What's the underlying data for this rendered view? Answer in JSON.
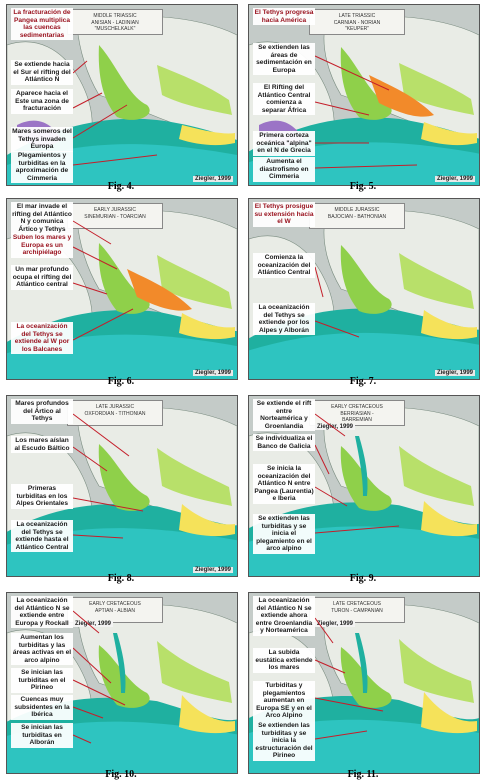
{
  "figures": [
    {
      "caption": "Fig. 4.",
      "legend": [
        "MIDDLE TRIASSIC",
        "ANISIAN - LADINIAN",
        "\"MUSCHELKALK\""
      ],
      "credit": "Ziegler, 1999",
      "annotations": [
        {
          "text": "La fracturación de Pangea multiplica las cuencas sedimentarias",
          "red": true
        },
        {
          "text": "Se extiende hacia el Sur el rifting del Atlántico N",
          "red": false
        },
        {
          "text": "Aparece hacia el Este una zona de fracturación",
          "red": false
        },
        {
          "text": "Mares someros del Tethys invaden Europa",
          "red": false
        },
        {
          "text": "Plegamientos y turbiditas en la aproximación de Cimmeria",
          "red": false
        }
      ]
    },
    {
      "caption": "Fig. 5.",
      "legend": [
        "LATE TRIASSIC",
        "CARNIAN - NORIAN",
        "\"KEUPER\""
      ],
      "credit": "Ziegler, 1999",
      "annotations": [
        {
          "text": "El Tethys progresa hacia América",
          "red": true
        },
        {
          "text": "Se extienden las áreas de sedimentación en Europa",
          "red": false
        },
        {
          "text": "El Rifting del Atlántico Central comienza a separar África",
          "red": false
        },
        {
          "text": "Primera corteza oceánica \"alpina\" en el N de Grecia",
          "red": false
        },
        {
          "text": "Aumenta el diastrofismo en Cimmeria",
          "red": false
        }
      ]
    },
    {
      "caption": "Fig. 6.",
      "legend": [
        "EARLY JURASSIC",
        "SINEMURIAN - TOARCIAN",
        ""
      ],
      "credit": "Ziegler, 1999",
      "annotations": [
        {
          "text": "El mar invade el rifting del Atlántico N y comunica Ártico y Tethys",
          "red": false
        },
        {
          "text": "Suben los mares y Europa es un archipiélago",
          "red": true
        },
        {
          "text": "Un mar profundo ocupa el rifting del Atlántico central",
          "red": false
        },
        {
          "text": "La oceanización del Tethys se extiende al W por los Balcanes",
          "red": true
        }
      ]
    },
    {
      "caption": "Fig. 7.",
      "legend": [
        "MIDDLE JURASSIC",
        "BAJOCIAN - BATHONIAN",
        ""
      ],
      "credit": "Ziegler, 1999",
      "annotations": [
        {
          "text": "El Tethys prosigue su extensión hacia el W",
          "red": true
        },
        {
          "text": "Comienza la oceanización del Atlántico Central",
          "red": false
        },
        {
          "text": "La oceanización del Tethys se extiende por los Alpes y Alborán",
          "red": false
        }
      ]
    },
    {
      "caption": "Fig. 8.",
      "legend": [
        "LATE JURASSIC",
        "OXFORDIAN - TITHONIAN",
        ""
      ],
      "credit": "Ziegler, 1999",
      "annotations": [
        {
          "text": "Mares profundos del Ártico al Tethys",
          "red": false
        },
        {
          "text": "Los mares aíslan al Escudo Báltico",
          "red": false
        },
        {
          "text": "Primeras turbiditas en los Alpes Orientales",
          "red": false
        },
        {
          "text": "La oceanización del Tethys se extiende hasta el Atlántico Central",
          "red": false
        }
      ]
    },
    {
      "caption": "Fig. 9.",
      "legend": [
        "EARLY CRETACEOUS",
        "BERRIASIAN -",
        "BARREMIAN"
      ],
      "credit": "Ziegler, 1999",
      "annotations": [
        {
          "text": "Se extiende el rift entre Norteamérica y Groenlandia",
          "red": false
        },
        {
          "text": "Se individualiza el Banco de Galicia",
          "red": false
        },
        {
          "text": "Se inicia la oceanización del Atlántico N entre Pangea (Laurentia) e Iberia",
          "red": false
        },
        {
          "text": "Se extienden las turbiditas y se inicia el plegamiento en el arco alpino",
          "red": false
        }
      ]
    },
    {
      "caption": "Fig. 10.",
      "legend": [
        "EARLY CRETACEOUS",
        "APTIAN - ALBIAN",
        ""
      ],
      "credit": "Ziegler, 1999",
      "annotations": [
        {
          "text": "La oceanización del Atlántico N se extiende entre Europa y Rockall",
          "red": false
        },
        {
          "text": "Aumentan los turbiditas y las áreas activas en el arco alpino",
          "red": false
        },
        {
          "text": "Se inician las turbiditas en el Pirineo",
          "red": false
        },
        {
          "text": "Cuencas muy subsidentes en la Ibérica",
          "red": false
        },
        {
          "text": "Se inician las turbiditas en Alborán",
          "red": false
        }
      ]
    },
    {
      "caption": "Fig. 11.",
      "legend": [
        "LATE CRETACEOUS",
        "TURON - CAMPANIAN",
        ""
      ],
      "credit": "Ziegler, 1999",
      "annotations": [
        {
          "text": "La oceanización del Atlántico N se extiende ahora entre Groenlandia y Norteamérica",
          "red": false
        },
        {
          "text": "La subida eustática extiende los mares",
          "red": false
        },
        {
          "text": "Turbiditas y plegamientos aumentan en Europa SE y en el Arco Alpino",
          "red": false
        },
        {
          "text": "Se extienden las turbiditas y se inicia la estructuración del Pirineo",
          "red": false
        }
      ]
    }
  ],
  "colors": {
    "land": "#e9ece6",
    "shelf": "#8fd04a",
    "shallow": "#b8e06a",
    "deep": "#1fb0a0",
    "ocean": "#2ec4c0",
    "orange": "#f28a2a",
    "yellow": "#f5e25a",
    "purple": "#9b74c6",
    "grey": "#c4cbc8",
    "red_text": "#9a1420"
  }
}
